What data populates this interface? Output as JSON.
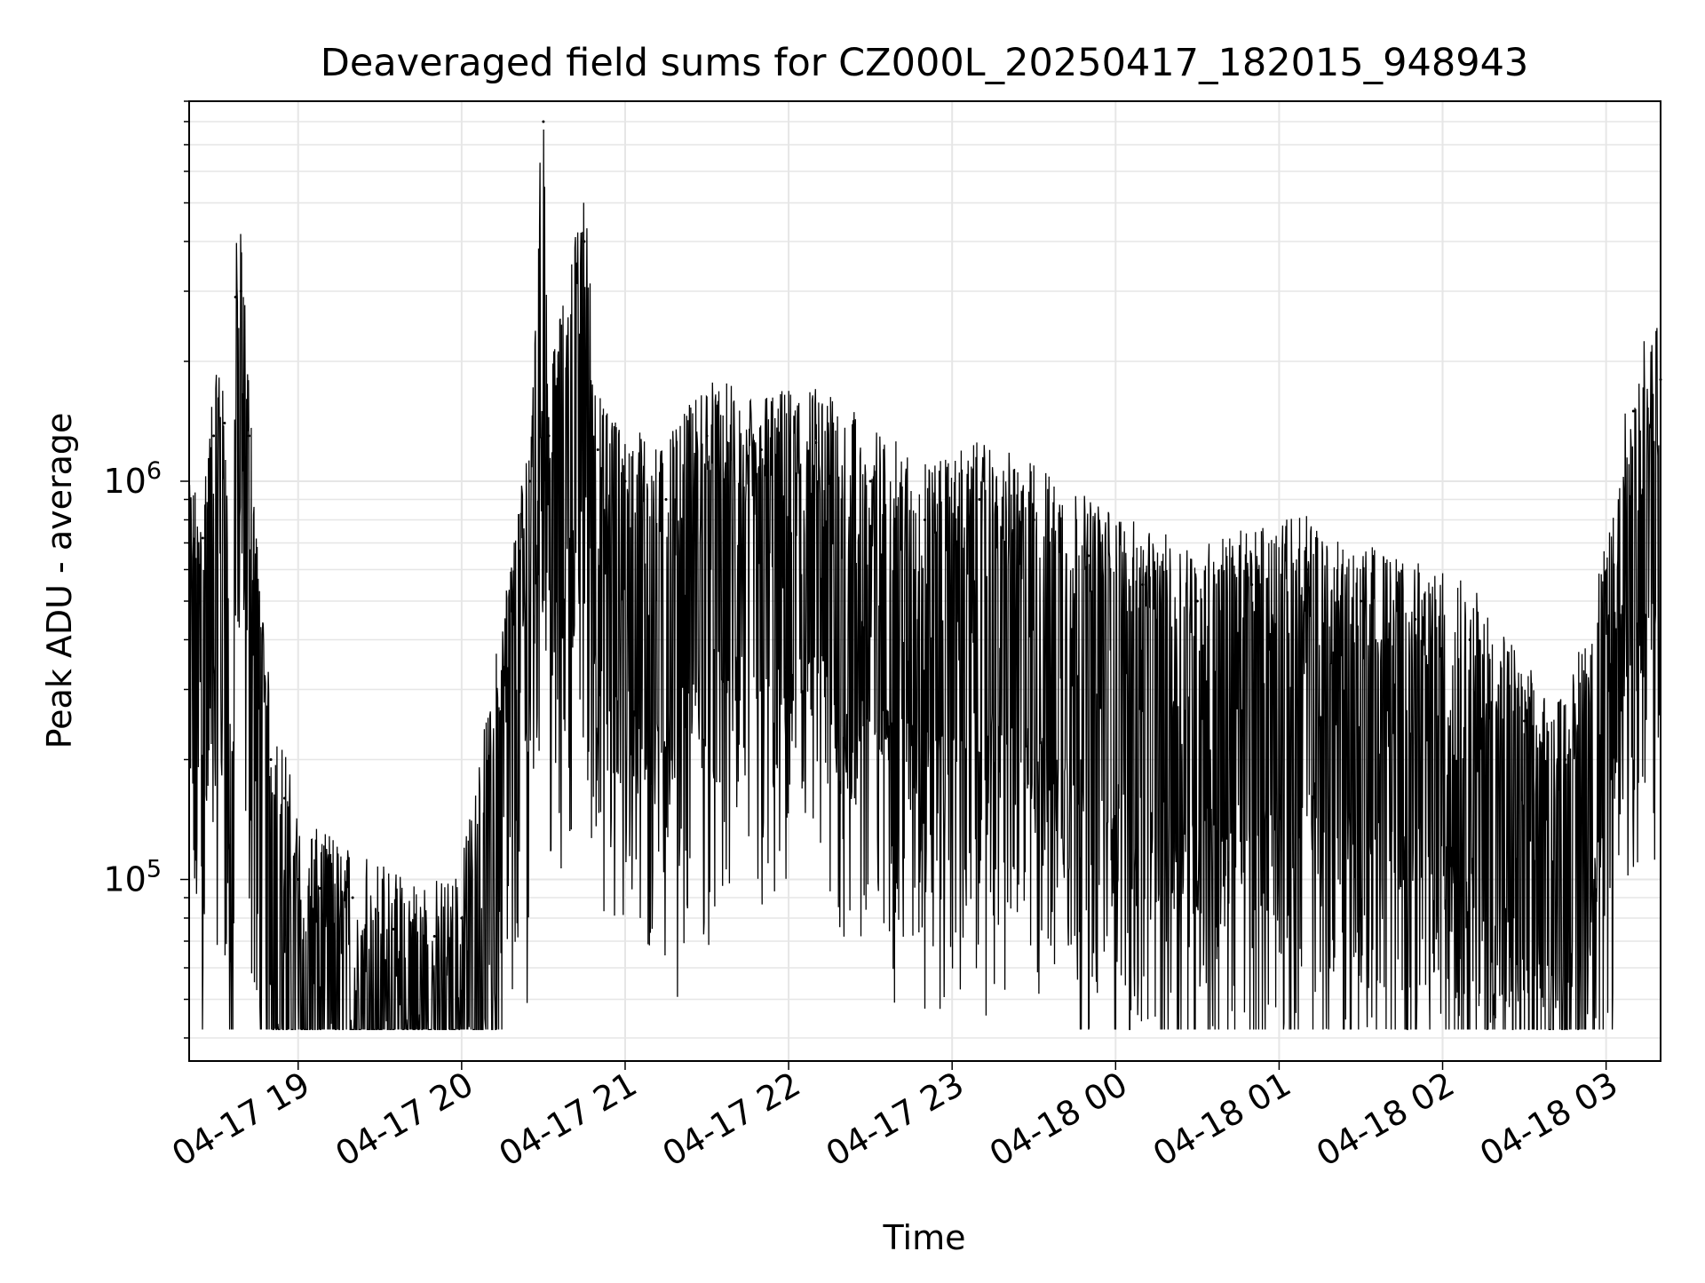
{
  "chart_data": {
    "type": "line",
    "title": "Deaveraged field sums for CZ000L_20250417_182015_948943",
    "xlabel": "Time",
    "ylabel": "Peak ADU - average",
    "x_range": [
      "2025-04-17 18:20",
      "2025-04-18 03:20"
    ],
    "y_scale": "log",
    "ylim": [
      35000,
      9000000
    ],
    "y_tick_labels": [
      {
        "value": 100000,
        "base": "10",
        "exp": "5"
      },
      {
        "value": 1000000,
        "base": "10",
        "exp": "6"
      }
    ],
    "x_ticks": [
      {
        "time": "2025-04-17 19:00",
        "label": "04-17 19"
      },
      {
        "time": "2025-04-17 20:00",
        "label": "04-17 20"
      },
      {
        "time": "2025-04-17 21:00",
        "label": "04-17 21"
      },
      {
        "time": "2025-04-17 22:00",
        "label": "04-17 22"
      },
      {
        "time": "2025-04-17 23:00",
        "label": "04-17 23"
      },
      {
        "time": "2025-04-18 00:00",
        "label": "04-18 00"
      },
      {
        "time": "2025-04-18 01:00",
        "label": "04-18 01"
      },
      {
        "time": "2025-04-18 02:00",
        "label": "04-18 02"
      },
      {
        "time": "2025-04-18 03:00",
        "label": "04-18 03"
      }
    ],
    "grid": true,
    "line_color": "#000000",
    "series": [
      {
        "points": [
          [
            "2025-04-17 18:20",
            700000
          ],
          [
            "2025-04-17 18:25",
            720000
          ],
          [
            "2025-04-17 18:29",
            1300000
          ],
          [
            "2025-04-17 18:33",
            1400000
          ],
          [
            "2025-04-17 18:36",
            150000
          ],
          [
            "2025-04-17 18:37",
            2900000
          ],
          [
            "2025-04-17 18:39",
            3000000
          ],
          [
            "2025-04-17 18:42",
            1300000
          ],
          [
            "2025-04-17 18:45",
            500000
          ],
          [
            "2025-04-17 18:50",
            200000
          ],
          [
            "2025-04-17 18:55",
            160000
          ],
          [
            "2025-04-17 19:00",
            100000
          ],
          [
            "2025-04-17 19:08",
            95000
          ],
          [
            "2025-04-17 19:20",
            90000
          ],
          [
            "2025-04-17 19:35",
            75000
          ],
          [
            "2025-04-17 19:50",
            72000
          ],
          [
            "2025-04-17 20:00",
            80000
          ],
          [
            "2025-04-17 20:10",
            200000
          ],
          [
            "2025-04-17 20:25",
            1000000
          ],
          [
            "2025-04-17 20:30",
            8000000
          ],
          [
            "2025-04-17 20:32",
            1300000
          ],
          [
            "2025-04-17 20:45",
            4000000
          ],
          [
            "2025-04-17 20:50",
            1200000
          ],
          [
            "2025-04-17 21:00",
            1000000
          ],
          [
            "2025-04-17 21:15",
            900000
          ],
          [
            "2025-04-17 21:30",
            1300000
          ],
          [
            "2025-04-17 21:50",
            1200000
          ],
          [
            "2025-04-17 22:10",
            1250000
          ],
          [
            "2025-04-17 22:30",
            1000000
          ],
          [
            "2025-04-17 22:50",
            800000
          ],
          [
            "2025-04-17 23:10",
            900000
          ],
          [
            "2025-04-17 23:30",
            800000
          ],
          [
            "2025-04-17 23:50",
            650000
          ],
          [
            "2025-04-18 00:10",
            550000
          ],
          [
            "2025-04-18 00:30",
            500000
          ],
          [
            "2025-04-18 00:50",
            550000
          ],
          [
            "2025-04-18 01:10",
            600000
          ],
          [
            "2025-04-18 01:30",
            500000
          ],
          [
            "2025-04-18 01:50",
            450000
          ],
          [
            "2025-04-18 02:10",
            400000
          ],
          [
            "2025-04-18 02:30",
            250000
          ],
          [
            "2025-04-18 02:45",
            200000
          ],
          [
            "2025-04-18 03:00",
            500000
          ],
          [
            "2025-04-18 03:10",
            1500000
          ],
          [
            "2025-04-18 03:20",
            1800000
          ]
        ]
      }
    ]
  }
}
